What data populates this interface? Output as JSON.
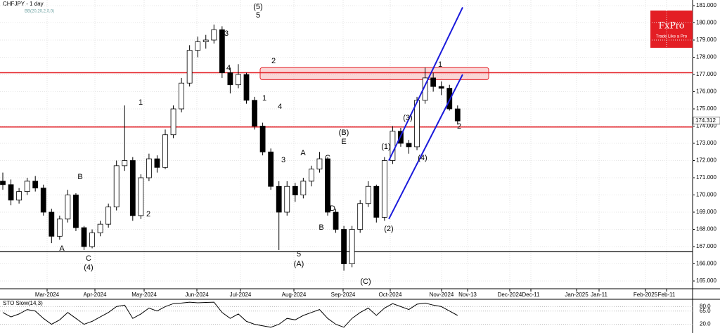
{
  "chart_data": {
    "type": "candlestick",
    "title": "CHFJPY - 1 day",
    "indicator": "BB(20,20,2,0,0)",
    "logo": {
      "name": "FxPro",
      "tagline": "Trade Like a Pro"
    },
    "open": [
      170.8,
      170.6,
      169.7,
      170.2,
      170.8,
      170.4,
      169.0,
      167.6,
      168.6,
      170.0,
      168.1,
      167.0,
      167.8,
      168.3,
      169.3,
      171.7,
      172.0,
      168.8,
      171.0,
      172.1,
      171.6,
      173.5,
      175.0,
      176.5,
      178.4,
      178.9,
      179.0,
      179.6,
      177.1,
      176.4,
      177.0,
      175.5,
      174.0,
      172.5,
      170.5,
      169.0,
      170.5,
      170.0,
      170.8,
      171.5,
      172.1,
      169.0,
      168.0,
      166.0,
      168.0,
      169.5,
      170.5,
      168.7,
      172.0,
      173.7,
      173.0,
      172.8,
      175.5,
      176.8,
      176.3,
      176.2,
      175.0
    ],
    "high": [
      171.3,
      170.9,
      170.4,
      171.0,
      171.1,
      170.6,
      169.2,
      168.8,
      170.3,
      170.1,
      168.2,
      168.0,
      168.5,
      169.5,
      172.0,
      175.2,
      172.2,
      171.2,
      172.4,
      172.3,
      173.8,
      175.2,
      176.8,
      178.7,
      179.2,
      179.3,
      179.9,
      179.8,
      177.4,
      177.6,
      177.1,
      175.7,
      174.2,
      172.7,
      170.8,
      170.8,
      170.7,
      171.0,
      171.7,
      172.5,
      172.2,
      169.2,
      168.2,
      168.2,
      169.7,
      170.8,
      170.6,
      172.2,
      174.0,
      173.9,
      173.2,
      175.7,
      177.4,
      177.1,
      176.6,
      176.4,
      175.2
    ],
    "low": [
      170.3,
      169.4,
      169.5,
      170.0,
      170.2,
      168.8,
      167.2,
      167.4,
      168.4,
      167.9,
      166.8,
      166.9,
      167.6,
      168.1,
      169.1,
      171.4,
      168.5,
      168.6,
      170.8,
      171.3,
      171.5,
      173.3,
      174.8,
      176.3,
      178.0,
      178.5,
      178.8,
      176.8,
      175.9,
      176.2,
      175.3,
      173.8,
      172.3,
      170.3,
      166.8,
      168.8,
      169.6,
      169.8,
      170.5,
      171.3,
      168.8,
      167.8,
      165.6,
      165.8,
      167.8,
      169.3,
      168.4,
      168.5,
      171.8,
      172.8,
      172.4,
      172.6,
      175.3,
      176.0,
      175.8,
      174.9,
      174.1
    ],
    "close": [
      170.6,
      169.7,
      170.2,
      170.8,
      170.4,
      169.0,
      167.6,
      168.6,
      170.0,
      168.1,
      167.0,
      167.8,
      168.3,
      169.3,
      171.7,
      172.0,
      168.8,
      171.0,
      172.1,
      171.6,
      173.5,
      175.0,
      176.5,
      178.4,
      178.9,
      179.0,
      179.6,
      177.1,
      176.4,
      177.0,
      175.5,
      174.0,
      172.5,
      170.5,
      169.0,
      170.5,
      170.0,
      170.8,
      171.5,
      172.1,
      169.0,
      168.0,
      166.0,
      168.0,
      169.5,
      170.5,
      168.7,
      172.0,
      173.7,
      173.0,
      172.8,
      175.5,
      176.8,
      176.3,
      176.2,
      175.0,
      174.3
    ],
    "last_price": 174.312,
    "ylim": [
      165,
      181
    ],
    "yticks": [
      {
        "value": 165,
        "label": "165.000"
      },
      {
        "value": 166,
        "label": "166.000"
      },
      {
        "value": 167,
        "label": "167.000"
      },
      {
        "value": 168,
        "label": "168.000"
      },
      {
        "value": 169,
        "label": "169.000"
      },
      {
        "value": 170,
        "label": "170.000"
      },
      {
        "value": 171,
        "label": "171.000"
      },
      {
        "value": 172,
        "label": "172.000"
      },
      {
        "value": 173,
        "label": "173.000"
      },
      {
        "value": 174,
        "label": "174.000"
      },
      {
        "value": 175,
        "label": "175.000"
      },
      {
        "value": 176,
        "label": "176.000"
      },
      {
        "value": 177,
        "label": "177.000"
      },
      {
        "value": 178,
        "label": "178.000"
      },
      {
        "value": 179,
        "label": "179.000"
      },
      {
        "value": 180,
        "label": "180.000"
      },
      {
        "value": 181,
        "label": "181.000"
      }
    ],
    "x_labels": [
      "Mar-2024",
      "Apr-2024",
      "May-2024",
      "Jun-2024",
      "Jul-2024",
      "Aug-2024",
      "Sep-2024",
      "Oct-2024",
      "Nov-2024",
      "Nov-13",
      "Dec-2024",
      "Dec-11",
      "Jan-2025",
      "Jan-11",
      "Feb-2025",
      "Feb-11"
    ],
    "resistance_levels": [
      177.1,
      173.95
    ],
    "support_level": 166.7,
    "zone": [
      176.7,
      177.4
    ],
    "channel_upper": [
      172.0,
      180.9
    ],
    "channel_lower": [
      168.6,
      177.0
    ],
    "wave_labels": [
      "(5)",
      "5",
      "3",
      "4",
      "2",
      "1",
      "4",
      "3",
      "A",
      "5",
      "(A)",
      "C",
      "(B)",
      "E",
      "D",
      "B",
      "(C)",
      "(1)",
      "(3)",
      "(4)",
      "(2)",
      "1",
      "2",
      "1",
      "2",
      "B",
      "A",
      "C",
      "(4)"
    ],
    "oscillator": {
      "title": "STO Slow(14,3)",
      "values": [
        60,
        45,
        55,
        70,
        65,
        40,
        20,
        35,
        60,
        40,
        20,
        30,
        45,
        60,
        80,
        85,
        40,
        55,
        75,
        65,
        80,
        90,
        92,
        95,
        93,
        94,
        95,
        60,
        40,
        55,
        30,
        20,
        15,
        10,
        20,
        40,
        35,
        50,
        60,
        70,
        40,
        20,
        10,
        40,
        60,
        75,
        50,
        75,
        90,
        80,
        70,
        88,
        92,
        85,
        80,
        65,
        50
      ],
      "ylim": [
        0,
        100
      ],
      "yticks": [
        {
          "value": 20,
          "label": "20.0"
        },
        {
          "value": 65,
          "label": "65.0"
        },
        {
          "value": 80,
          "label": "80.0"
        }
      ]
    }
  }
}
